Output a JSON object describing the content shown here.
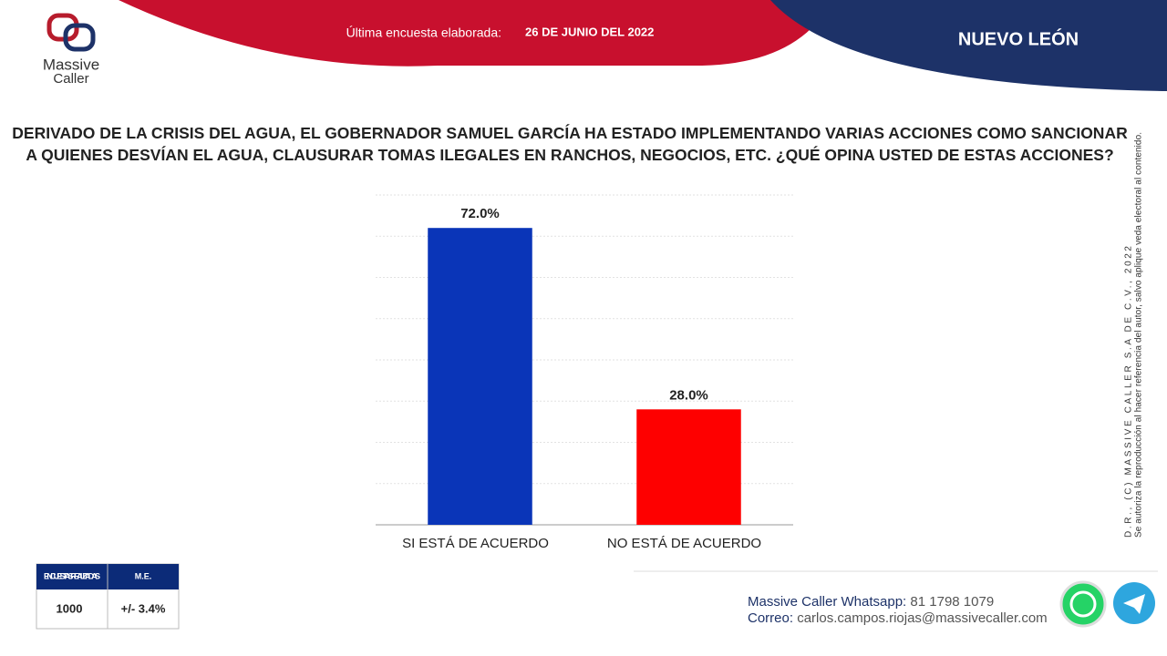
{
  "header": {
    "survey_label": "Última encuesta elaborada:",
    "survey_date": "26 DE JUNIO DEL 2022",
    "region": "NUEVO LEÓN",
    "logo_top": "Massive",
    "logo_bottom": "Caller"
  },
  "chart_data": {
    "type": "bar",
    "title": "DERIVADO DE LA CRISIS DEL AGUA, EL GOBERNADOR SAMUEL GARCÍA HA ESTADO IMPLEMENTANDO VARIAS ACCIONES COMO SANCIONAR A QUIENES DESVÍAN EL AGUA, CLAUSURAR TOMAS ILEGALES EN RANCHOS, NEGOCIOS, ETC. ¿QUÉ OPINA USTED DE ESTAS ACCIONES?",
    "categories": [
      "SI ESTÁ DE ACUERDO",
      "NO ESTÁ DE ACUERDO"
    ],
    "values": [
      72,
      28
    ],
    "value_labels": [
      "72.0%",
      "28.0%"
    ],
    "colors": [
      "#0a35b8",
      "#fe0000"
    ],
    "ylim": [
      0,
      80
    ],
    "yticks": [
      0,
      10,
      20,
      30,
      40,
      50,
      60,
      70,
      80
    ],
    "grid": true
  },
  "sample_table": {
    "headers": [
      "ENCUESTAS REALIZADAS",
      "M.E."
    ],
    "values": [
      "1000",
      "+/- 3.4%"
    ]
  },
  "side_note": [
    "D.R., (C) MASSIVE CALLER S.A DE C.V., 2022",
    "Se autoriza la reproducción al hacer referencia del autor, salvo aplique veda electoral al contenido."
  ],
  "footer": {
    "whatsapp_label": "Massive Caller Whatsapp:",
    "whatsapp": "81 1798 1079",
    "email_label": "Correo:",
    "email": "carlos.campos.riojas@massivecaller.com"
  }
}
